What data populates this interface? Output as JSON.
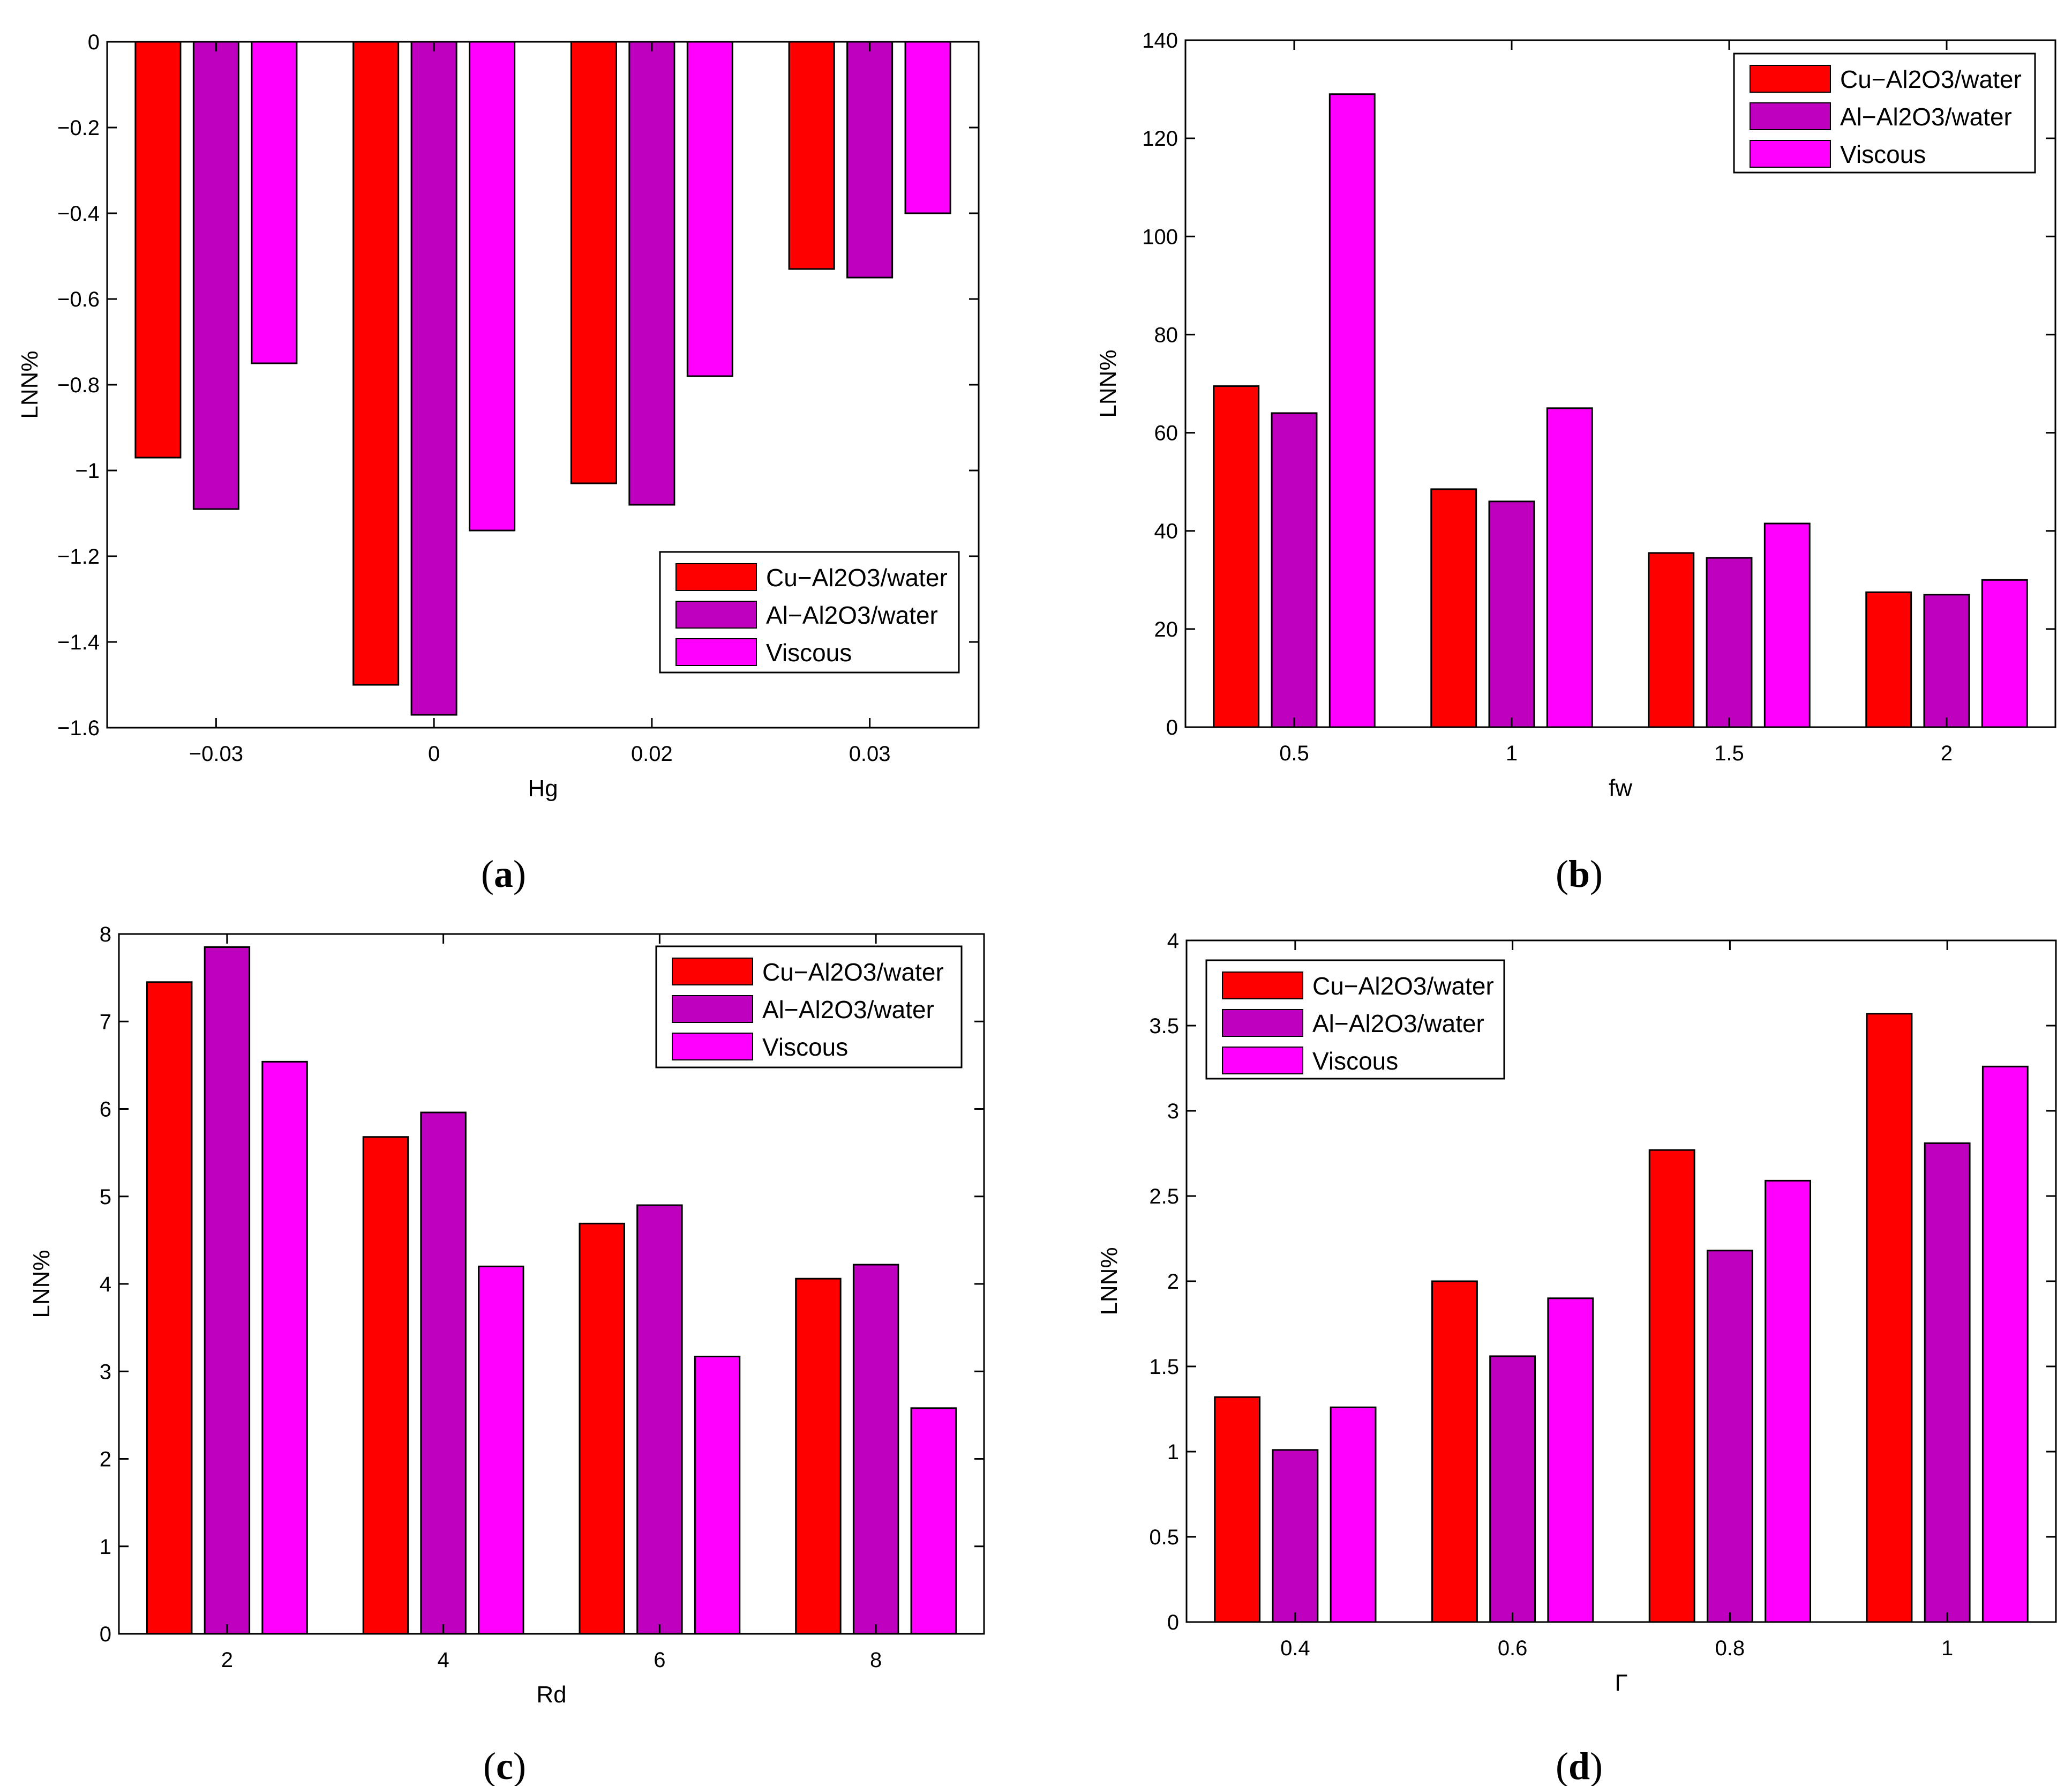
{
  "legend_labels": [
    "Cu−Al2O3/water",
    "Al−Al2O3/water",
    "Viscous"
  ],
  "series_colors": [
    "#ff0000",
    "#bf00bf",
    "#ff00ff"
  ],
  "chart_data": [
    {
      "type": "bar",
      "panel": "a",
      "caption_letter": "a",
      "categories": [
        "−0.03",
        "0",
        "0.02",
        "0.03"
      ],
      "series": [
        {
          "name": "Cu−Al2O3/water",
          "values": [
            -0.97,
            -1.5,
            -1.03,
            -0.53
          ]
        },
        {
          "name": "Al−Al2O3/water",
          "values": [
            -1.09,
            -1.57,
            -1.08,
            -0.55
          ]
        },
        {
          "name": "Viscous",
          "values": [
            -0.75,
            -1.14,
            -0.78,
            -0.4
          ]
        }
      ],
      "xlabel": "Hg",
      "ylabel": "LNN%",
      "ylim": [
        -1.6,
        0
      ],
      "yticks": [
        0,
        -0.2,
        -0.4,
        -0.6,
        -0.8,
        -1,
        -1.2,
        -1.4,
        -1.6
      ],
      "ytick_labels": [
        "0",
        "−0.2",
        "−0.4",
        "−0.6",
        "−0.8",
        "−1",
        "−1.2",
        "−1.4",
        "−1.6"
      ],
      "legend_position": "bottom-right"
    },
    {
      "type": "bar",
      "panel": "b",
      "caption_letter": "b",
      "categories": [
        "0.5",
        "1",
        "1.5",
        "2"
      ],
      "series": [
        {
          "name": "Cu−Al2O3/water",
          "values": [
            69.5,
            48.5,
            35.5,
            27.5
          ]
        },
        {
          "name": "Al−Al2O3/water",
          "values": [
            64.0,
            46.0,
            34.5,
            27.0
          ]
        },
        {
          "name": "Viscous",
          "values": [
            129.0,
            65.0,
            41.5,
            30.0
          ]
        }
      ],
      "xlabel": "fw",
      "ylabel": "LNN%",
      "ylim": [
        0,
        140
      ],
      "yticks": [
        0,
        20,
        40,
        60,
        80,
        100,
        120,
        140
      ],
      "ytick_labels": [
        "0",
        "20",
        "40",
        "60",
        "80",
        "100",
        "120",
        "140"
      ],
      "legend_position": "top-right"
    },
    {
      "type": "bar",
      "panel": "c",
      "caption_letter": "c",
      "categories": [
        "2",
        "4",
        "6",
        "8"
      ],
      "series": [
        {
          "name": "Cu−Al2O3/water",
          "values": [
            7.45,
            5.68,
            4.69,
            4.06
          ]
        },
        {
          "name": "Al−Al2O3/water",
          "values": [
            7.85,
            5.96,
            4.9,
            4.22
          ]
        },
        {
          "name": "Viscous",
          "values": [
            6.54,
            4.2,
            3.17,
            2.58
          ]
        }
      ],
      "xlabel": "Rd",
      "ylabel": "LNN%",
      "ylim": [
        0,
        8
      ],
      "yticks": [
        0,
        1,
        2,
        3,
        4,
        5,
        6,
        7,
        8
      ],
      "ytick_labels": [
        "0",
        "1",
        "2",
        "3",
        "4",
        "5",
        "6",
        "7",
        "8"
      ],
      "legend_position": "top-right"
    },
    {
      "type": "bar",
      "panel": "d",
      "caption_letter": "d",
      "categories": [
        "0.4",
        "0.6",
        "0.8",
        "1"
      ],
      "series": [
        {
          "name": "Cu−Al2O3/water",
          "values": [
            1.32,
            2.0,
            2.77,
            3.57
          ]
        },
        {
          "name": "Al−Al2O3/water",
          "values": [
            1.01,
            1.56,
            2.18,
            2.81
          ]
        },
        {
          "name": "Viscous",
          "values": [
            1.26,
            1.9,
            2.59,
            3.26
          ]
        }
      ],
      "xlabel": "Γ",
      "ylabel": "LNN%",
      "ylim": [
        0,
        4
      ],
      "yticks": [
        0,
        0.5,
        1,
        1.5,
        2,
        2.5,
        3,
        3.5,
        4
      ],
      "ytick_labels": [
        "0",
        "0.5",
        "1",
        "1.5",
        "2",
        "2.5",
        "3",
        "3.5",
        "4"
      ],
      "legend_position": "top-left"
    }
  ]
}
